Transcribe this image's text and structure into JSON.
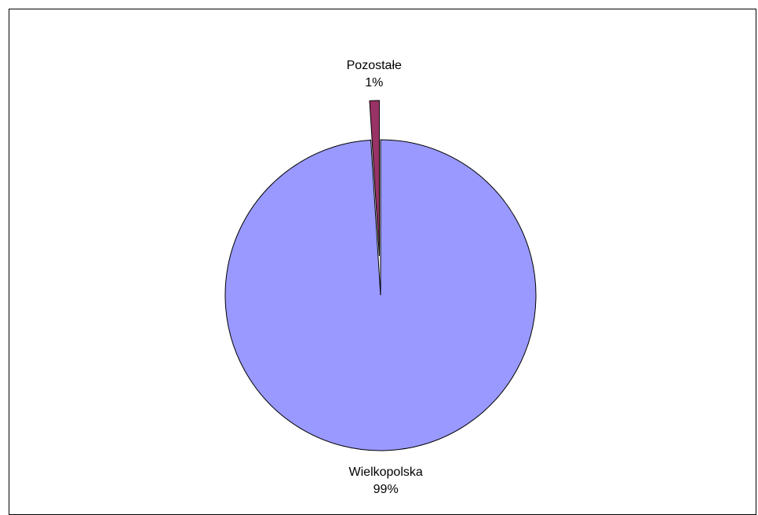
{
  "chart_data": {
    "type": "pie",
    "title": "",
    "slices": [
      {
        "name": "Wielkopolska",
        "value": 99,
        "label_name": "Wielkopolska",
        "label_value": "99%",
        "color": "#9999ff",
        "exploded": false
      },
      {
        "name": "Pozostałe",
        "value": 1,
        "label_name": "Pozostałe",
        "label_value": "1%",
        "color": "#993366",
        "exploded": true
      }
    ],
    "start_angle_deg": 0,
    "direction": "clockwise"
  }
}
